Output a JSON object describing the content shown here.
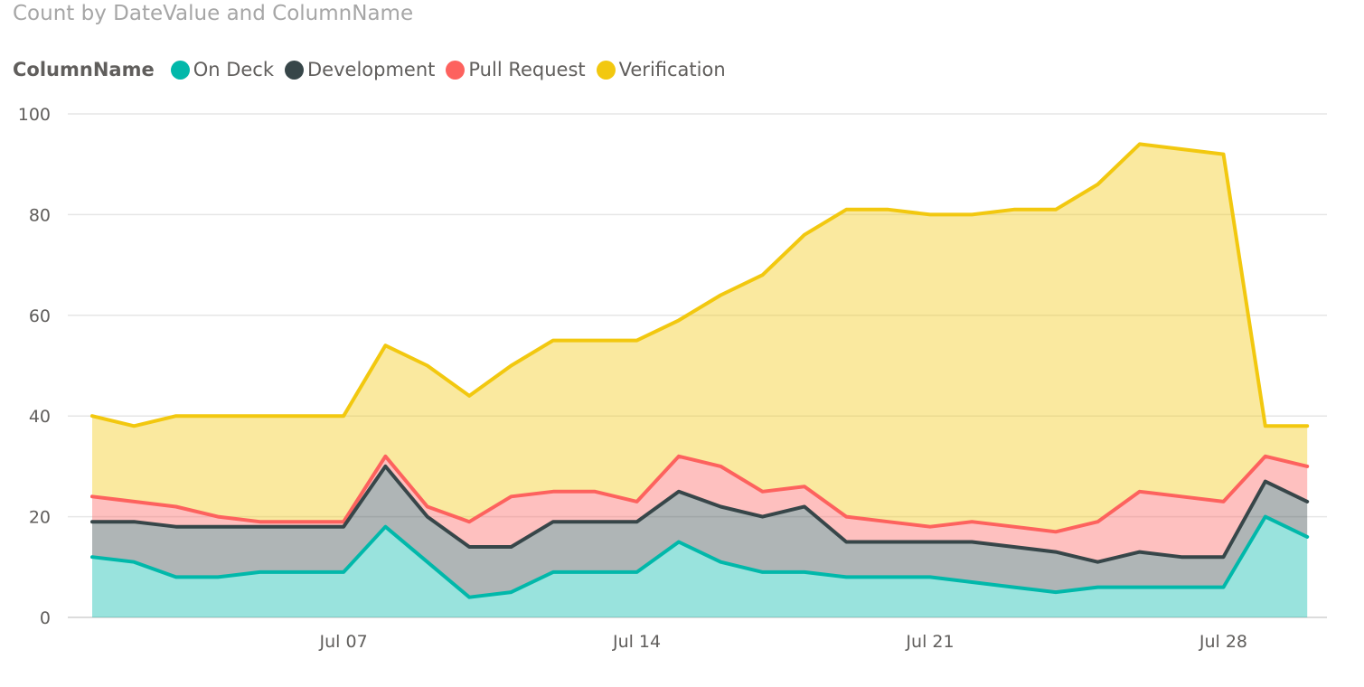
{
  "chart_data": {
    "type": "area",
    "title": "Count by DateValue and ColumnName",
    "legend_title": "ColumnName",
    "legend_position": "top-left",
    "stacked": true,
    "grid": true,
    "x": [
      "Jul 01",
      "Jul 02",
      "Jul 03",
      "Jul 04",
      "Jul 05",
      "Jul 06",
      "Jul 07",
      "Jul 08",
      "Jul 09",
      "Jul 10",
      "Jul 11",
      "Jul 12",
      "Jul 13",
      "Jul 14",
      "Jul 15",
      "Jul 16",
      "Jul 17",
      "Jul 18",
      "Jul 19",
      "Jul 20",
      "Jul 21",
      "Jul 22",
      "Jul 23",
      "Jul 24",
      "Jul 25",
      "Jul 26",
      "Jul 27",
      "Jul 28",
      "Jul 29",
      "Jul 30"
    ],
    "x_tick_labels": [
      "Jul 07",
      "Jul 14",
      "Jul 21",
      "Jul 28"
    ],
    "ylim": [
      0,
      100
    ],
    "y_ticks": [
      0,
      20,
      40,
      60,
      80,
      100
    ],
    "series": [
      {
        "name": "On Deck",
        "color": "#01B8AA",
        "values": [
          12,
          11,
          8,
          8,
          9,
          9,
          9,
          18,
          11,
          4,
          5,
          9,
          9,
          9,
          15,
          11,
          9,
          9,
          8,
          8,
          8,
          7,
          6,
          5,
          6,
          6,
          6,
          6,
          20,
          16
        ]
      },
      {
        "name": "Development",
        "color": "#374649",
        "values": [
          7,
          8,
          10,
          10,
          9,
          9,
          9,
          12,
          9,
          10,
          9,
          10,
          10,
          10,
          10,
          11,
          11,
          13,
          7,
          7,
          7,
          8,
          8,
          8,
          5,
          7,
          6,
          6,
          7,
          7
        ]
      },
      {
        "name": "Pull Request",
        "color": "#FD625E",
        "values": [
          5,
          4,
          4,
          2,
          1,
          1,
          1,
          2,
          2,
          5,
          10,
          6,
          6,
          4,
          7,
          8,
          5,
          4,
          5,
          4,
          3,
          4,
          4,
          4,
          8,
          12,
          12,
          11,
          5,
          7
        ]
      },
      {
        "name": "Verification",
        "color": "#F2C80F",
        "values": [
          16,
          15,
          18,
          20,
          21,
          21,
          21,
          22,
          28,
          25,
          26,
          30,
          30,
          32,
          27,
          34,
          43,
          50,
          61,
          62,
          62,
          61,
          63,
          64,
          67,
          69,
          69,
          69,
          6,
          8
        ]
      }
    ]
  }
}
